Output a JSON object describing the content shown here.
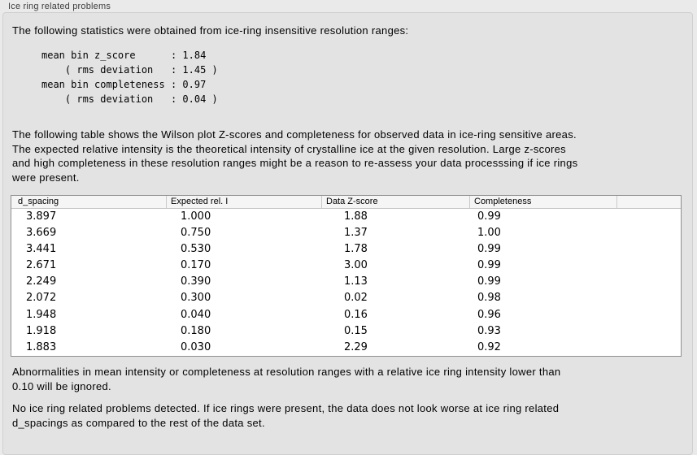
{
  "panel": {
    "title": "Ice ring related problems"
  },
  "intro": "The following statistics were obtained from ice-ring insensitive resolution ranges:",
  "stats_block": "mean bin z_score      : 1.84\n    ( rms deviation   : 1.45 )\nmean bin completeness : 0.97\n    ( rms deviation   : 0.04 )",
  "stats": {
    "mean_bin_z_score": "1.84",
    "z_score_rms_deviation": "1.45",
    "mean_bin_completeness": "0.97",
    "completeness_rms_deviation": "0.04"
  },
  "table_description": "The following table shows the Wilson plot Z-scores and completeness for observed data in ice-ring sensitive areas.\nThe expected relative intensity is the theoretical intensity of crystalline ice at the given resolution. Large z-scores\nand high completeness in these resolution ranges might be a reason to re-assess your data processsing if ice rings\nwere present.",
  "table": {
    "columns": [
      {
        "id": "d-spacing",
        "label": "d_spacing"
      },
      {
        "id": "expected-rel-i",
        "label": "Expected rel. I"
      },
      {
        "id": "data-z-score",
        "label": "Data Z-score"
      },
      {
        "id": "completeness",
        "label": "Completeness"
      },
      {
        "id": "spacer",
        "label": ""
      }
    ],
    "rows": [
      [
        "3.897",
        "1.000",
        "1.88",
        "0.99"
      ],
      [
        "3.669",
        "0.750",
        "1.37",
        "1.00"
      ],
      [
        "3.441",
        "0.530",
        "1.78",
        "0.99"
      ],
      [
        "2.671",
        "0.170",
        "3.00",
        "0.99"
      ],
      [
        "2.249",
        "0.390",
        "1.13",
        "0.99"
      ],
      [
        "2.072",
        "0.300",
        "0.02",
        "0.98"
      ],
      [
        "1.948",
        "0.040",
        "0.16",
        "0.96"
      ],
      [
        "1.918",
        "0.180",
        "0.15",
        "0.93"
      ],
      [
        "1.883",
        "0.030",
        "2.29",
        "0.92"
      ]
    ]
  },
  "ignore_note": "Abnormalities in mean intensity or completeness at resolution ranges with a relative ice ring intensity lower than\n0.10 will be ignored.",
  "conclusion": "No ice ring related problems detected. If ice rings were present, the data does not look worse at ice ring related\nd_spacings as compared to the rest of the data set.",
  "colors": {
    "page_background": "#eaeaea",
    "groupbox_background": "#e3e3e3",
    "groupbox_border": "#cfcfcf",
    "table_border": "#8f8f8f",
    "table_header_background": "#f5f5f5",
    "text": "#000000"
  }
}
